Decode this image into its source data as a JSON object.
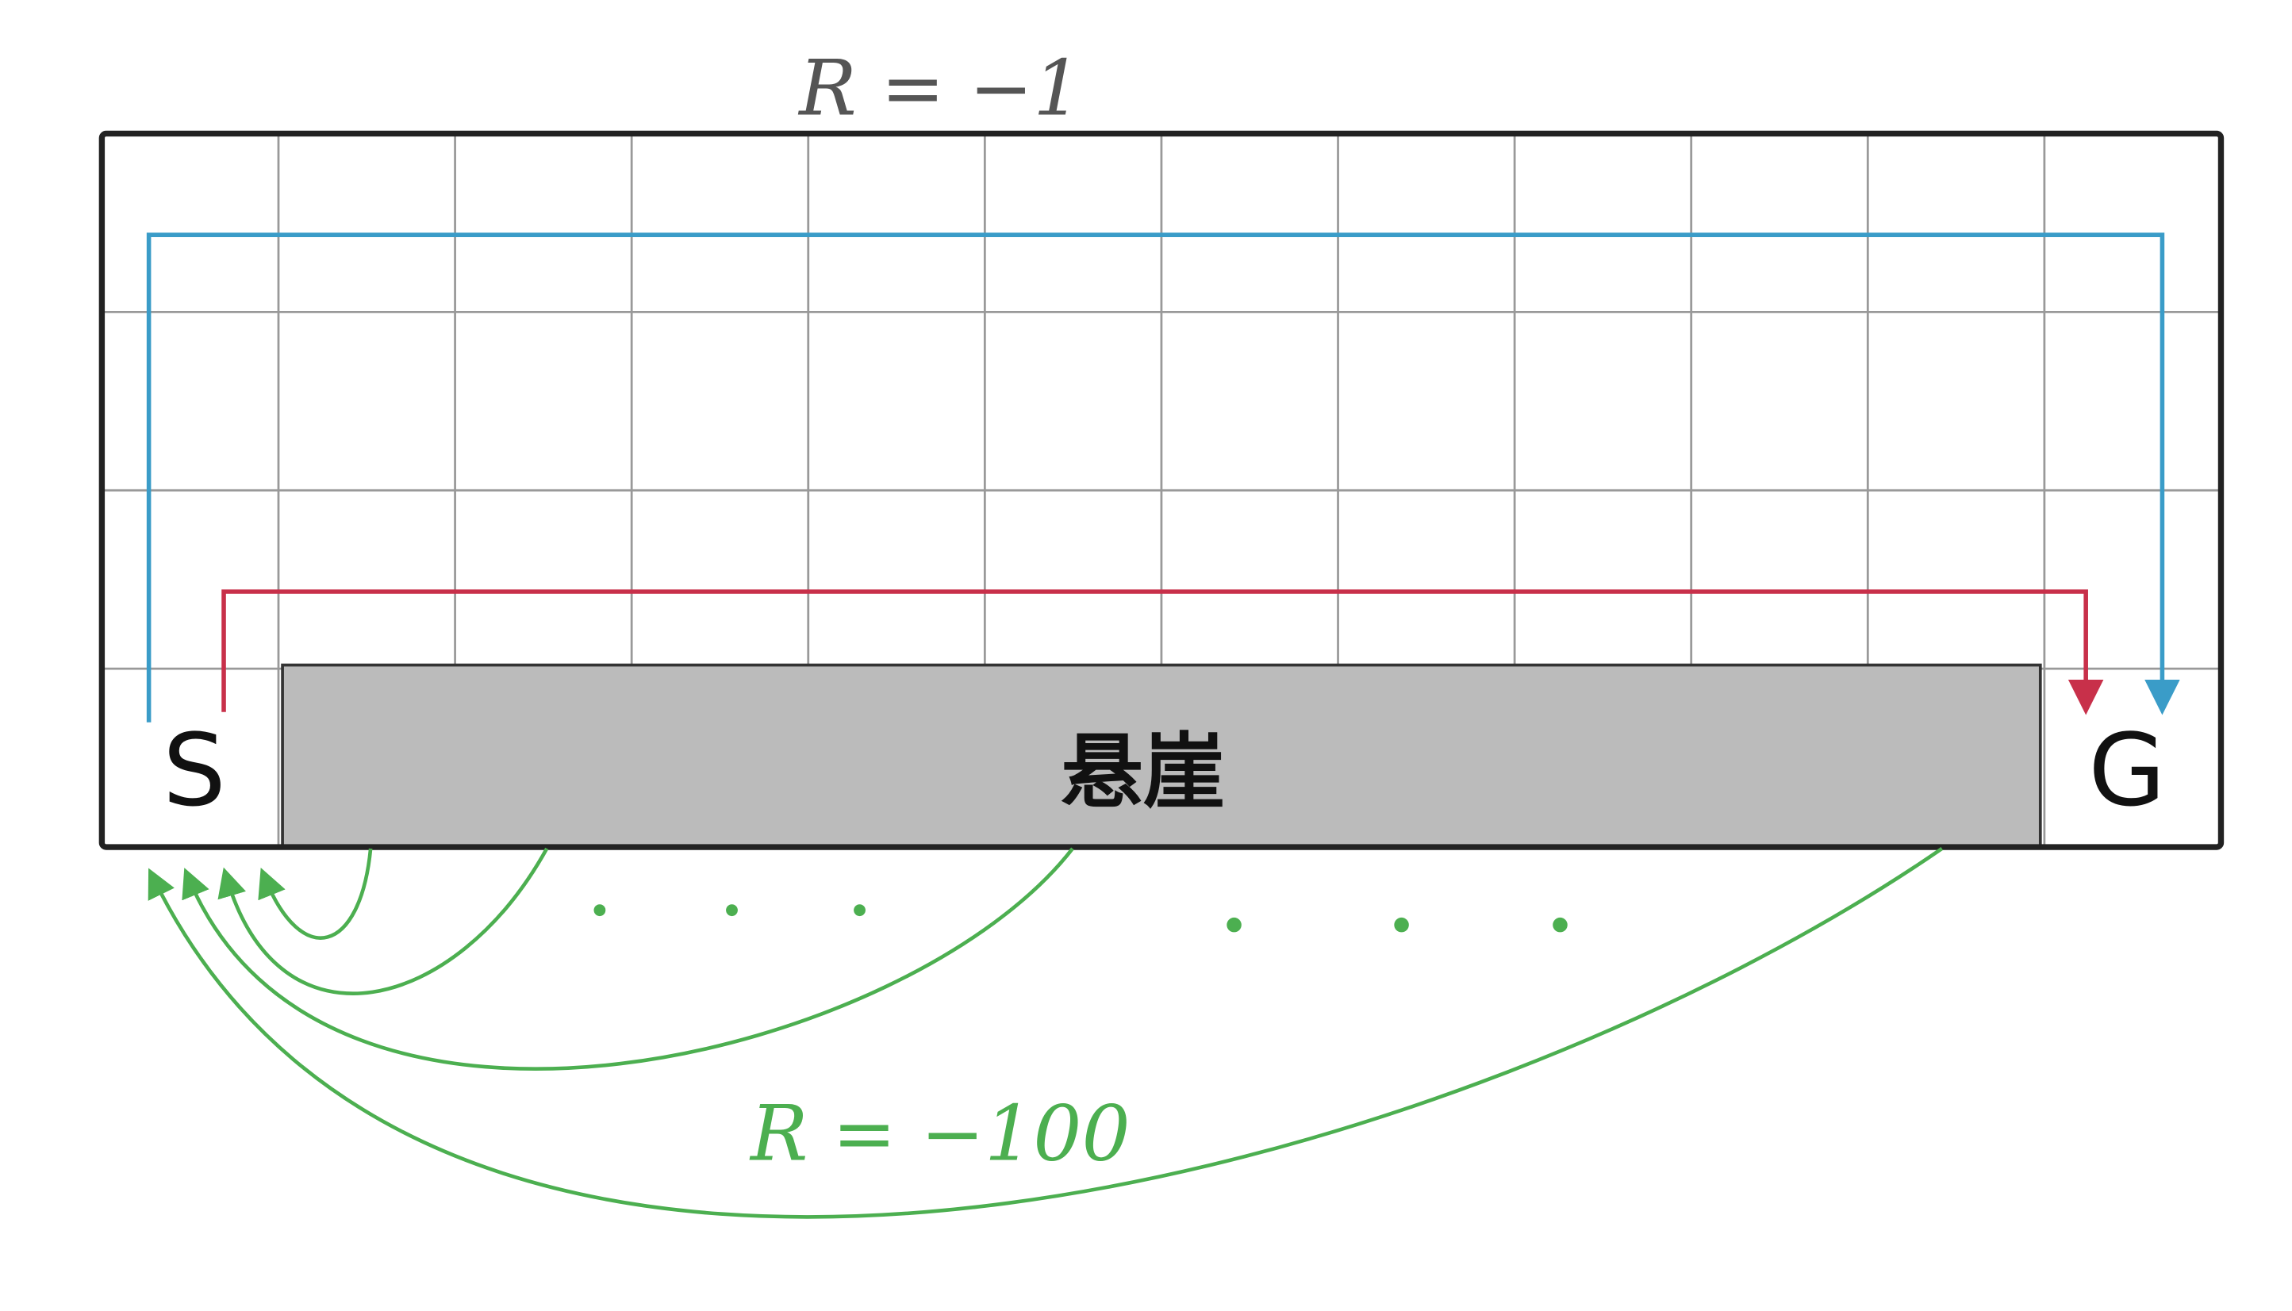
{
  "top_reward_label": "R = −1",
  "bottom_reward_label": "R = −100",
  "cliff_label": "悬崖",
  "start_label": "S",
  "goal_label": "G",
  "grid": {
    "columns": 12,
    "rows": 4
  },
  "colors": {
    "safe_path": "#3a9cc8",
    "optimal_path": "#c8304a",
    "fall_arrows": "#4caf50",
    "cliff_fill": "#bbbbbb",
    "top_label": "#555555"
  }
}
